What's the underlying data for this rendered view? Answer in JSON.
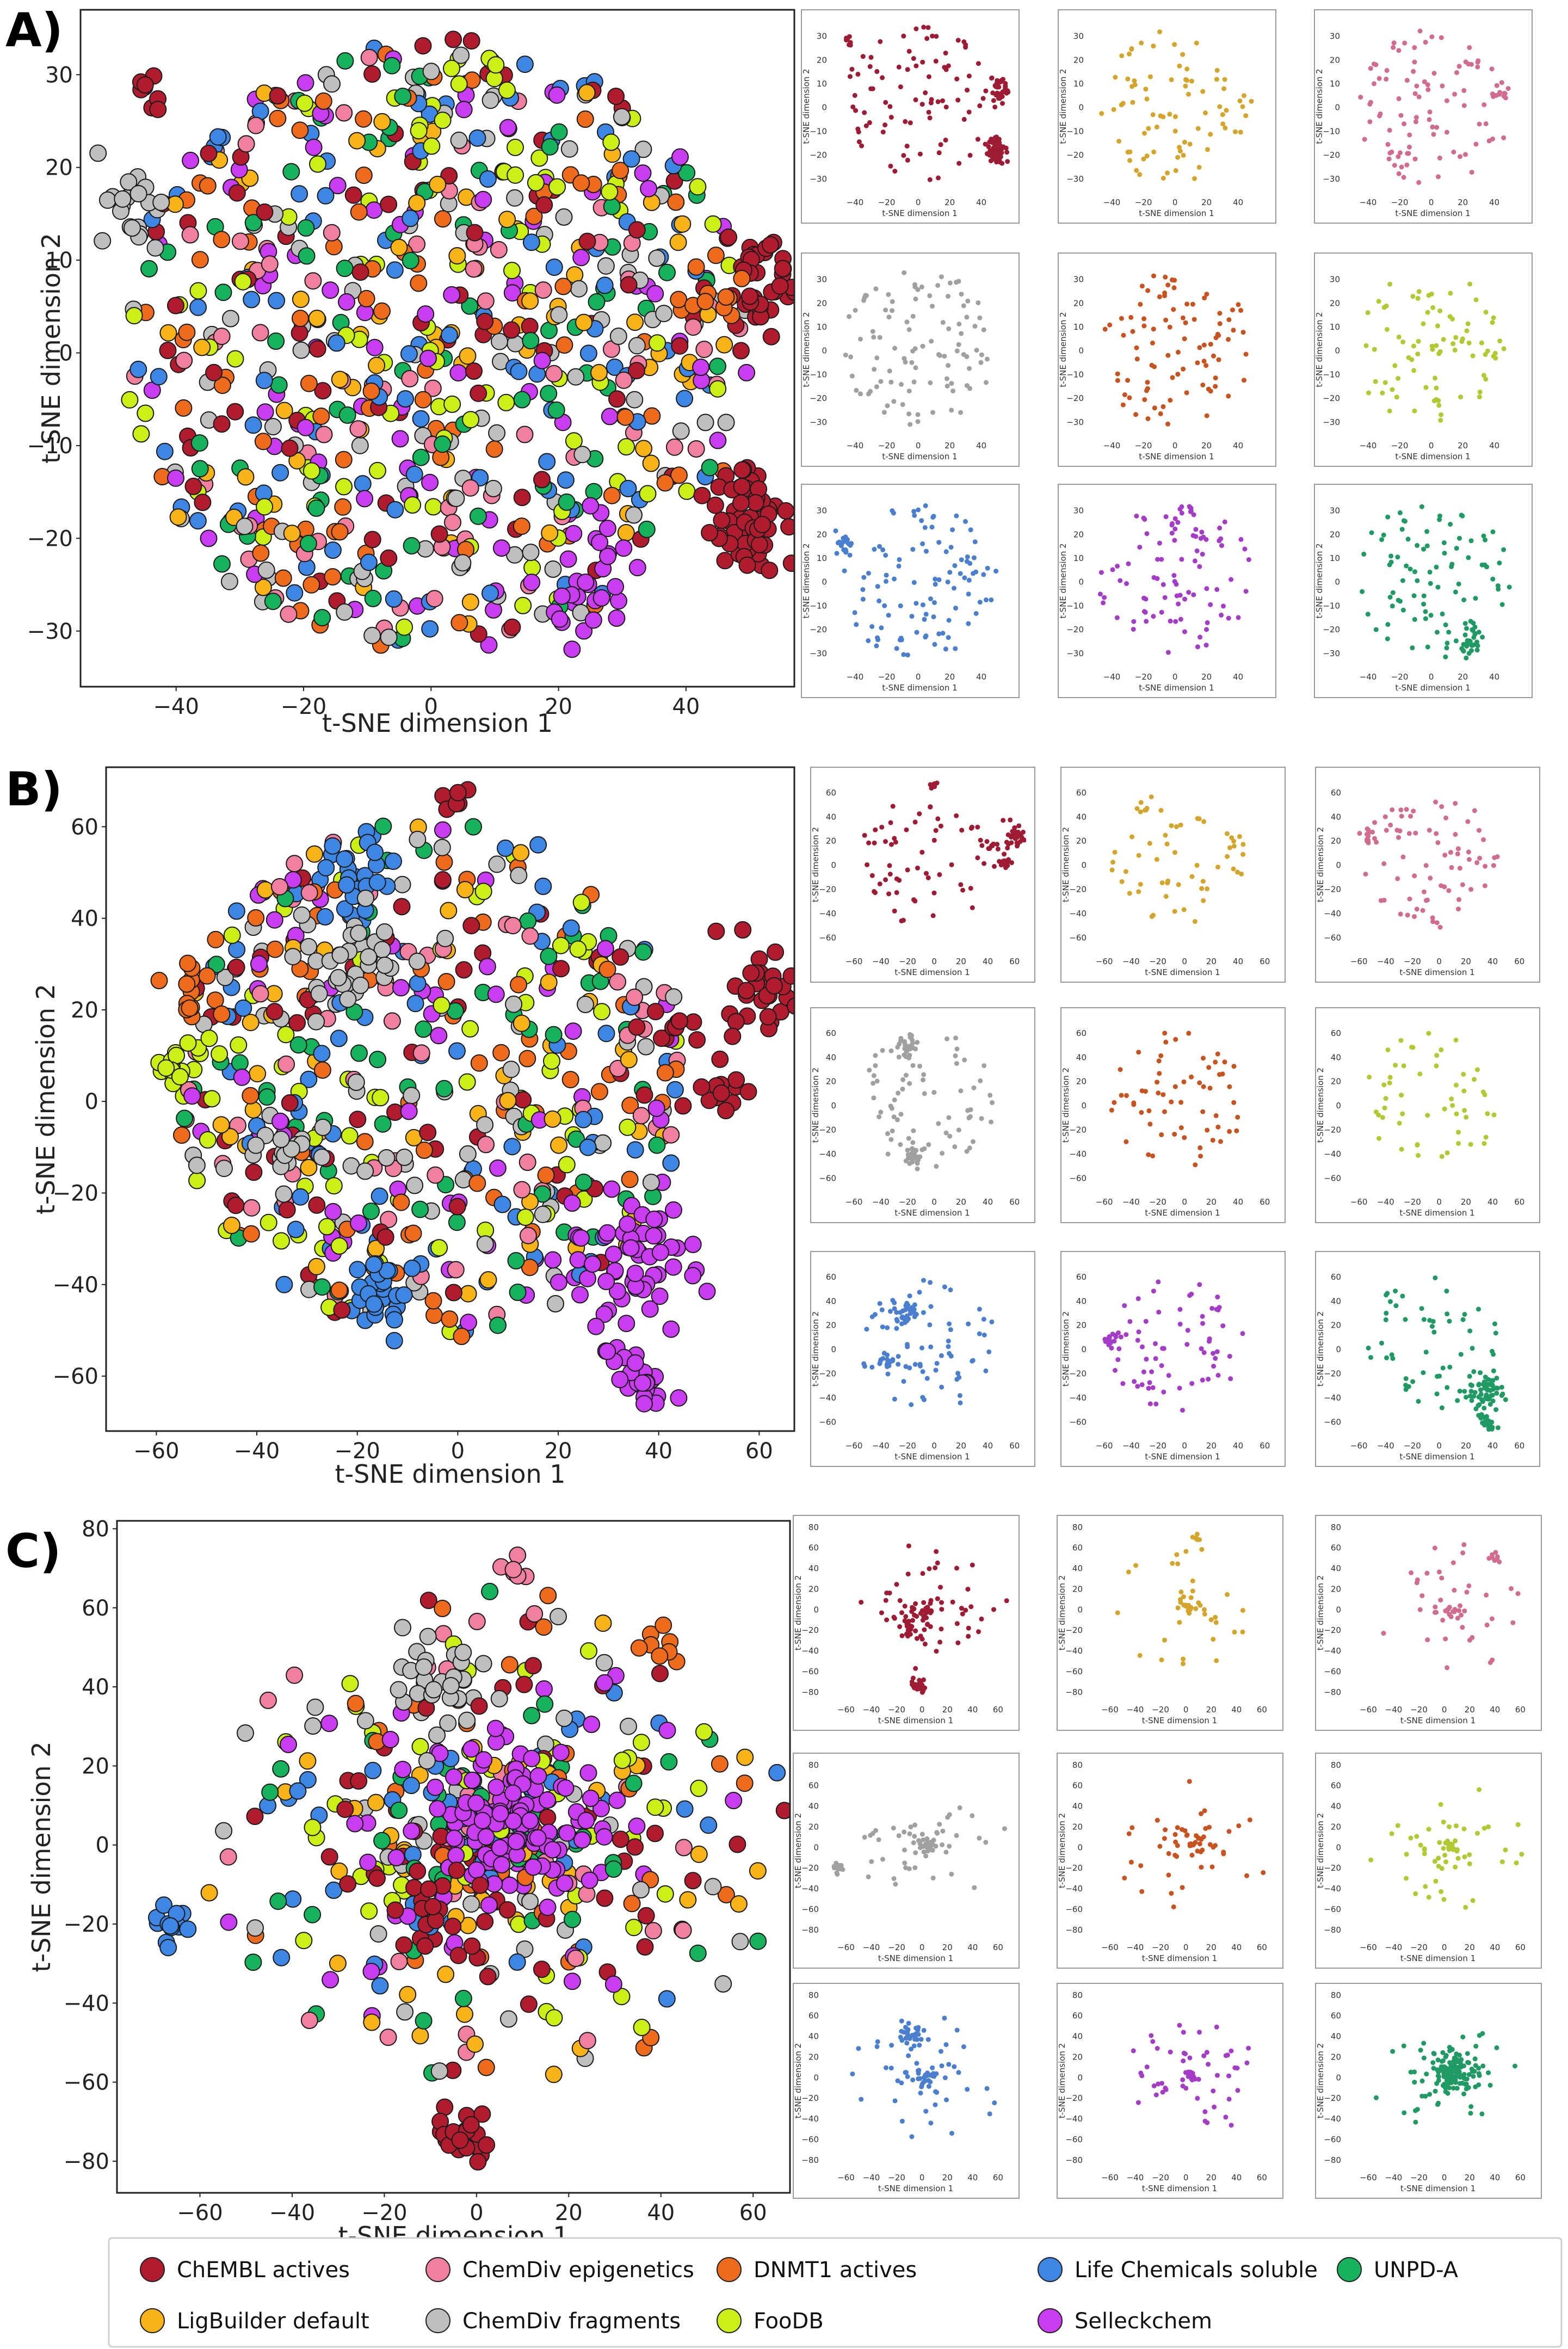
{
  "legend": [
    {
      "name": "ChEMBL actives",
      "color": "#b01c2e"
    },
    {
      "name": "ChemDiv epigenetics",
      "color": "#f07fa0"
    },
    {
      "name": "DNMT1 actives",
      "color": "#ee6a1d"
    },
    {
      "name": "Life Chemicals soluble",
      "color": "#3e86e4"
    },
    {
      "name": "UNPD-A",
      "color": "#16b35c"
    },
    {
      "name": "LigBuilder default",
      "color": "#f7b318"
    },
    {
      "name": "ChemDiv fragments",
      "color": "#bfbfbf"
    },
    {
      "name": "FooDB",
      "color": "#ccf015"
    },
    {
      "name": "Selleckchem",
      "color": "#c93cf0"
    }
  ],
  "small_colors": [
    "#9e1b33",
    "#d4a52a",
    "#d16c8f",
    "#a0a0a0",
    "#c8531f",
    "#b2c932",
    "#4a7fd0",
    "#a43cc8",
    "#1e9a62"
  ],
  "chart_data": [
    {
      "panel": "A)",
      "type": "scatter",
      "xlabel": "t-SNE dimension 1",
      "ylabel": "t-SNE dimension 2",
      "xlim": [
        -55,
        57
      ],
      "ylim": [
        -36,
        37
      ],
      "xticks": [
        -40,
        -20,
        0,
        20,
        40
      ],
      "yticks": [
        -30,
        -20,
        -10,
        0,
        10,
        20,
        30
      ],
      "small_xticks": [
        -40,
        -20,
        0,
        20,
        40
      ],
      "small_yticks": [
        -30,
        -20,
        -10,
        0,
        10,
        20,
        30
      ],
      "spread": "uniform",
      "clusters": [
        {
          "series": "ChEMBL actives",
          "x": 52,
          "y": 8,
          "sd": 3,
          "n": 40
        },
        {
          "series": "ChEMBL actives",
          "x": 50,
          "y": -18,
          "sd": 3.5,
          "n": 55
        },
        {
          "series": "ChEMBL actives",
          "x": -44,
          "y": 28,
          "sd": 1.5,
          "n": 8
        },
        {
          "series": "Selleckchem",
          "x": 25,
          "y": -26,
          "sd": 3,
          "n": 25
        },
        {
          "series": "ChemDiv fragments",
          "x": -47,
          "y": 15,
          "sd": 3,
          "n": 20
        },
        {
          "series": "DNMT1 actives",
          "x": 44,
          "y": 5,
          "sd": 3,
          "n": 12
        }
      ]
    },
    {
      "panel": "B)",
      "type": "scatter",
      "xlabel": "t-SNE dimension 1",
      "ylabel": "t-SNE dimension 2",
      "xlim": [
        -70,
        67
      ],
      "ylim": [
        -72,
        73
      ],
      "xticks": [
        -60,
        -40,
        -20,
        0,
        20,
        40,
        60
      ],
      "yticks": [
        -60,
        -40,
        -20,
        0,
        20,
        40,
        60
      ],
      "small_xticks": [
        -60,
        -40,
        -20,
        0,
        20,
        40,
        60
      ],
      "small_yticks": [
        -60,
        -40,
        -20,
        0,
        20,
        40,
        60
      ],
      "spread": "blob",
      "clusters": [
        {
          "series": "Selleckchem",
          "x": 33,
          "y": -35,
          "sd": 7,
          "n": 60
        },
        {
          "series": "Selleckchem",
          "x": 35,
          "y": -60,
          "sd": 3.5,
          "n": 30
        },
        {
          "series": "ChEMBL actives",
          "x": 58,
          "y": 25,
          "sd": 5,
          "n": 30
        },
        {
          "series": "ChEMBL actives",
          "x": 52,
          "y": 0,
          "sd": 3,
          "n": 12
        },
        {
          "series": "ChEMBL actives",
          "x": 42,
          "y": 15,
          "sd": 3,
          "n": 10
        },
        {
          "series": "ChEMBL actives",
          "x": 0,
          "y": 66,
          "sd": 1.5,
          "n": 6
        },
        {
          "series": "Life Chemicals soluble",
          "x": -15,
          "y": -42,
          "sd": 3.5,
          "n": 25
        },
        {
          "series": "Life Chemicals soluble",
          "x": -20,
          "y": 48,
          "sd": 5,
          "n": 25
        },
        {
          "series": "ChemDiv fragments",
          "x": -35,
          "y": -12,
          "sd": 3,
          "n": 18
        },
        {
          "series": "ChemDiv fragments",
          "x": -20,
          "y": 30,
          "sd": 6,
          "n": 35
        },
        {
          "series": "FooDB",
          "x": -57,
          "y": 10,
          "sd": 3,
          "n": 18
        },
        {
          "series": "DNMT1 actives",
          "x": -52,
          "y": 25,
          "sd": 3,
          "n": 12
        }
      ]
    },
    {
      "panel": "C)",
      "type": "scatter",
      "xlabel": "t-SNE dimension 1",
      "ylabel": "t-SNE dimension 2",
      "xlim": [
        -78,
        68
      ],
      "ylim": [
        -88,
        82
      ],
      "xticks": [
        -60,
        -40,
        -20,
        0,
        20,
        40,
        60
      ],
      "yticks": [
        -80,
        -60,
        -40,
        -20,
        0,
        20,
        40,
        60,
        80
      ],
      "small_xticks": [
        -60,
        -40,
        -20,
        0,
        20,
        40,
        60
      ],
      "small_yticks": [
        -80,
        -60,
        -40,
        -20,
        0,
        20,
        40,
        60,
        80
      ],
      "spread": "radial",
      "clusters": [
        {
          "series": "Selleckchem",
          "x": 5,
          "y": 5,
          "sd": 11,
          "n": 110
        },
        {
          "series": "ChEMBL actives",
          "x": -3,
          "y": -74,
          "sd": 3,
          "n": 25
        },
        {
          "series": "ChEMBL actives",
          "x": -10,
          "y": -15,
          "sd": 8,
          "n": 25
        },
        {
          "series": "Life Chemicals soluble",
          "x": -67,
          "y": -20,
          "sd": 2.5,
          "n": 12
        },
        {
          "series": "ChemDiv fragments",
          "x": -10,
          "y": 42,
          "sd": 6,
          "n": 30
        },
        {
          "series": "DNMT1 actives",
          "x": 40,
          "y": 50,
          "sd": 2.5,
          "n": 8
        },
        {
          "series": "ChemDiv epigenetics",
          "x": 7,
          "y": 70,
          "sd": 2,
          "n": 6
        }
      ]
    }
  ]
}
